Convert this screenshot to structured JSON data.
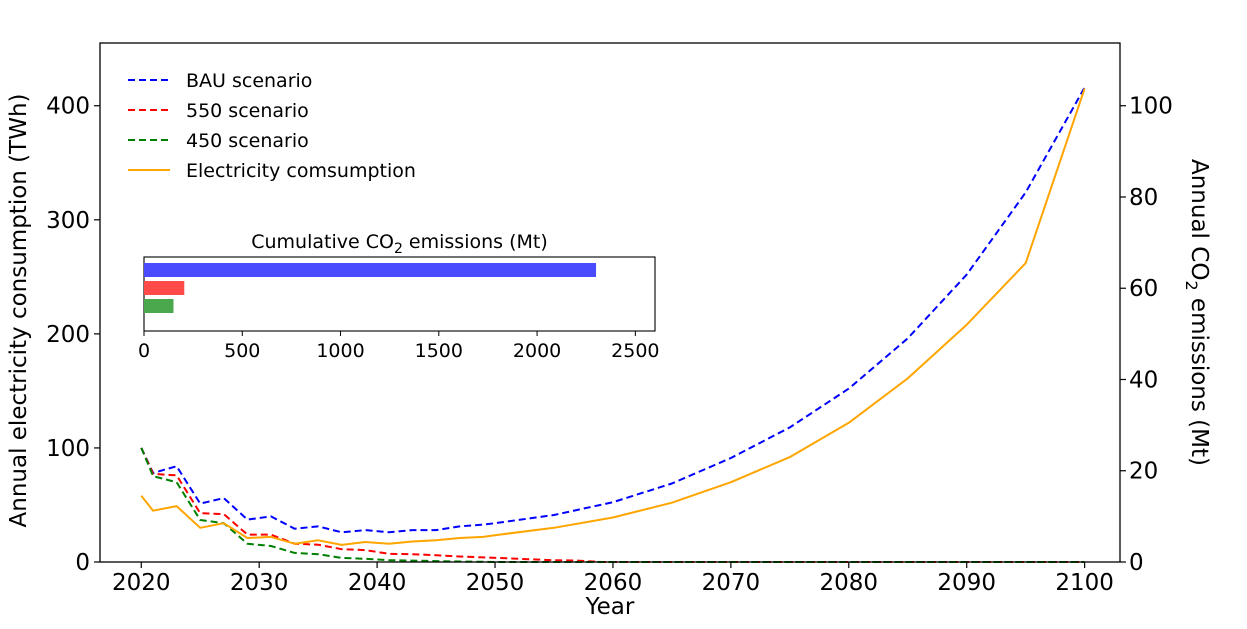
{
  "chart_data": {
    "type": "line",
    "xlabel": "Year",
    "ylabel_left": "Annual electricity consumption (TWh)",
    "ylabel_right_prefix": "Annual CO",
    "ylabel_right_sub": "2",
    "ylabel_right_suffix": " emissions (Mt)",
    "xlim": [
      2016.5,
      2103
    ],
    "ylim_left": [
      0,
      455
    ],
    "ylim_right": [
      0,
      113.75
    ],
    "x_ticks": [
      2020,
      2030,
      2040,
      2050,
      2060,
      2070,
      2080,
      2090,
      2100
    ],
    "y_ticks_left": [
      0,
      100,
      200,
      300,
      400
    ],
    "y_ticks_right": [
      0,
      20,
      40,
      60,
      80,
      100
    ],
    "legend_position": "top-left",
    "series": [
      {
        "name": "BAU scenario",
        "axis": "right",
        "style": "dashed",
        "color": "#0000ff",
        "x": [
          2020,
          2021,
          2023,
          2025,
          2027,
          2029,
          2031,
          2033,
          2035,
          2037,
          2039,
          2041,
          2043,
          2045,
          2047,
          2049,
          2050,
          2055,
          2060,
          2065,
          2070,
          2075,
          2080,
          2085,
          2090,
          2095,
          2100
        ],
        "y": [
          25,
          19.5,
          21,
          12.8,
          14,
          9.3,
          10,
          7.3,
          7.8,
          6.5,
          7,
          6.5,
          7,
          7,
          7.8,
          8.2,
          8.5,
          10.3,
          13.1,
          17.2,
          22.8,
          29.5,
          38,
          49,
          63,
          81,
          104
        ]
      },
      {
        "name": "550 scenario",
        "axis": "right",
        "style": "dashed",
        "color": "#ff0000",
        "x": [
          2020,
          2021,
          2023,
          2025,
          2027,
          2029,
          2031,
          2033,
          2035,
          2037,
          2039,
          2041,
          2043,
          2045,
          2047,
          2049,
          2051,
          2053,
          2055,
          2057,
          2059,
          2060,
          2070,
          2080,
          2090,
          2100
        ],
        "y": [
          25,
          19.3,
          19,
          10.7,
          10.5,
          6,
          6,
          4,
          3.8,
          2.8,
          2.6,
          1.8,
          1.7,
          1.5,
          1.2,
          1,
          0.8,
          0.6,
          0.4,
          0.3,
          0,
          0,
          0,
          0,
          0,
          0
        ]
      },
      {
        "name": "450 scenario",
        "axis": "right",
        "style": "dashed",
        "color": "#008000",
        "x": [
          2020,
          2021,
          2023,
          2025,
          2027,
          2029,
          2031,
          2033,
          2035,
          2037,
          2039,
          2041,
          2043,
          2045,
          2047,
          2049,
          2050,
          2060,
          2070,
          2080,
          2090,
          2100
        ],
        "y": [
          25,
          18.8,
          17.5,
          9.2,
          8.5,
          4,
          3.5,
          2,
          1.7,
          0.9,
          0.7,
          0.4,
          0.3,
          0.2,
          0.1,
          0.05,
          0,
          0,
          0,
          0,
          0,
          0
        ]
      },
      {
        "name": "Electricity comsumption",
        "axis": "left",
        "style": "solid",
        "color": "#ffa500",
        "x": [
          2020,
          2021,
          2023,
          2025,
          2027,
          2029,
          2031,
          2033,
          2035,
          2037,
          2039,
          2041,
          2043,
          2045,
          2047,
          2049,
          2050,
          2055,
          2060,
          2065,
          2070,
          2075,
          2080,
          2085,
          2090,
          2095,
          2100
        ],
        "y": [
          58,
          45,
          49,
          30,
          34,
          21,
          22,
          16,
          19,
          15,
          17.5,
          16,
          18,
          19,
          21,
          22,
          23.5,
          30,
          39,
          52,
          70,
          92,
          122,
          161,
          208,
          262,
          415
        ]
      }
    ],
    "inset": {
      "type": "barh",
      "title_prefix": "Cumulative CO",
      "title_sub": "2",
      "title_suffix": " emissions (Mt)",
      "xlim": [
        0,
        2600
      ],
      "x_ticks": [
        0,
        500,
        1000,
        1500,
        2000,
        2500
      ],
      "bars": [
        {
          "name": "BAU scenario",
          "value": 2300,
          "color": "#4a4aff"
        },
        {
          "name": "550 scenario",
          "value": 205,
          "color": "#ff4a4a"
        },
        {
          "name": "450 scenario",
          "value": 150,
          "color": "#4ca84c"
        }
      ]
    }
  }
}
